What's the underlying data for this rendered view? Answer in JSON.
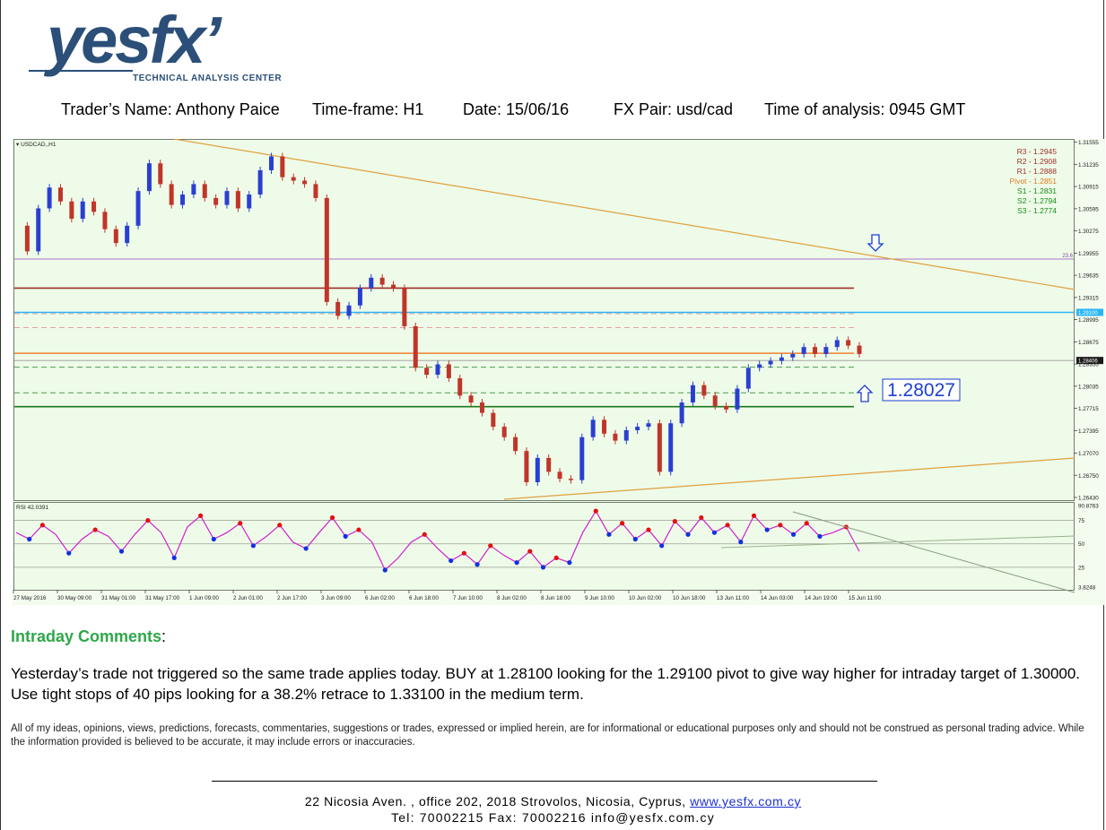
{
  "logo": {
    "wordmark": "yesfx’",
    "tagline": "TECHNICAL ANALYSIS CENTER"
  },
  "header": {
    "trader": "Trader’s Name: Anthony Paice",
    "timeframe": "Time-frame:  H1",
    "date": "Date:  15/06/16",
    "pair": "FX Pair: usd/cad",
    "time": "Time of analysis: 0945 GMT"
  },
  "chart_data": {
    "type": "line",
    "symbol_label": "▾ USDCAD,,H1",
    "price_axis": {
      "range": [
        1.2643,
        1.3155
      ],
      "ticks": [
        "1.31555",
        "1.31235",
        "1.30915",
        "1.30595",
        "1.30275",
        "1.29955",
        "1.29635",
        "1.29315",
        "1.28995",
        "1.28675",
        "1.28355",
        "1.28035",
        "1.27715",
        "1.27395",
        "1.27070",
        "1.26750",
        "1.26430"
      ],
      "tick_values": [
        1.31555,
        1.31235,
        1.30915,
        1.30595,
        1.30275,
        1.29955,
        1.29635,
        1.29315,
        1.28995,
        1.28675,
        1.28355,
        1.28035,
        1.27715,
        1.27395,
        1.2707,
        1.2675,
        1.2643
      ]
    },
    "time_labels": [
      "27 May 2016",
      "30 May 09:00",
      "31 May 01:00",
      "31 May 17:00",
      "1 Jun 09:00",
      "2 Jun 01:00",
      "2 Jun 17:00",
      "3 Jun 09:00",
      "6 Jun 02:00",
      "6 Jun 18:00",
      "7 Jun 10:00",
      "8 Jun 02:00",
      "8 Jun 18:00",
      "9 Jun 10:00",
      "10 Jun 02:00",
      "10 Jun 18:00",
      "13 Jun 11:00",
      "14 Jun 03:00",
      "14 Jun 19:00",
      "15 Jun 11:00"
    ],
    "pivots": [
      {
        "label": "R3 - 1.2945",
        "value": 1.2945,
        "color": "#a0302a",
        "style": "solid"
      },
      {
        "label": "R2 - 1.2908",
        "value": 1.2908,
        "color": "#e8a0a0",
        "style": "dashed"
      },
      {
        "label": "R1 - 1.2888",
        "value": 1.2888,
        "color": "#e8a0a0",
        "style": "dashed"
      },
      {
        "label": "Pivot - 1.2851",
        "value": 1.2851,
        "color": "#f08030",
        "style": "solid"
      },
      {
        "label": "S1 - 1.2831",
        "value": 1.2831,
        "color": "#4a9a4a",
        "style": "dashed"
      },
      {
        "label": "S2 - 1.2794",
        "value": 1.2794,
        "color": "#4a9a4a",
        "style": "dashed"
      },
      {
        "label": "S3 - 1.2774",
        "value": 1.2774,
        "color": "#1a7a1a",
        "style": "solid"
      }
    ],
    "fib_level": {
      "label": "23.6",
      "value": 1.2987,
      "color": "#b070d0"
    },
    "blue_level": {
      "label": "1.29100",
      "value": 1.291,
      "color": "#29b6f6"
    },
    "current_price": {
      "label": "1.28406",
      "value": 1.28406
    },
    "annotation": "1.28027",
    "price_series": [
      1.3035,
      1.2998,
      1.306,
      1.309,
      1.307,
      1.3045,
      1.307,
      1.3055,
      1.303,
      1.301,
      1.3035,
      1.3085,
      1.3125,
      1.3095,
      1.3065,
      1.308,
      1.3095,
      1.3075,
      1.3065,
      1.3085,
      1.306,
      1.308,
      1.3115,
      1.3135,
      1.3105,
      1.31,
      1.3095,
      1.3075,
      1.2925,
      1.2905,
      1.292,
      1.2945,
      1.296,
      1.295,
      1.2945,
      1.289,
      1.283,
      1.282,
      1.2835,
      1.2815,
      1.279,
      1.278,
      1.2765,
      1.2745,
      1.273,
      1.271,
      1.2665,
      1.27,
      1.268,
      1.267,
      1.2668,
      1.273,
      1.2755,
      1.2735,
      1.2725,
      1.274,
      1.2745,
      1.275,
      1.268,
      1.275,
      1.278,
      1.2805,
      1.279,
      1.2775,
      1.277,
      1.28,
      1.283,
      1.2835,
      1.284,
      1.2845,
      1.285,
      1.286,
      1.285,
      1.286,
      1.287,
      1.2862,
      1.285
    ],
    "rsi": {
      "label": "RSI 42.0391",
      "range": [
        3.8248,
        90.8763
      ],
      "ticks": [
        "90.8763",
        "75",
        "50",
        "25",
        "3.8248"
      ],
      "tick_values": [
        90.8763,
        75,
        50,
        25,
        3.8248
      ],
      "values": [
        62,
        55,
        70,
        60,
        40,
        55,
        65,
        58,
        42,
        60,
        75,
        62,
        35,
        68,
        80,
        55,
        62,
        72,
        48,
        58,
        70,
        52,
        45,
        62,
        78,
        58,
        65,
        52,
        22,
        35,
        52,
        60,
        45,
        32,
        40,
        28,
        48,
        38,
        30,
        42,
        25,
        35,
        30,
        62,
        85,
        60,
        72,
        55,
        65,
        48,
        74,
        60,
        78,
        62,
        70,
        52,
        80,
        65,
        70,
        60,
        72,
        58,
        62,
        68,
        42
      ]
    }
  },
  "comments": {
    "title": "Intraday Comments",
    "suffix": ":",
    "body": "Yesterday’s trade not triggered so the same trade applies today.  BUY at 1.28100 looking for the 1.29100 pivot to give way higher for intraday target of 1.30000.  Use tight stops of 40 pips looking for a 38.2% retrace to 1.33100 in the medium term."
  },
  "disclaimer": "All of my ideas, opinions, views, predictions, forecasts, commentaries, suggestions or trades, expressed or implied herein, are for informational or educational purposes only and should not be construed as personal trading advice. While the information provided is believed to be accurate, it may include errors or inaccuracies.",
  "footer": {
    "address": "22 Nicosia Aven. ,  office 202,  2018 Strovolos,  Nicosia,  Cyprus,",
    "website": "www.yesfx.com.cy",
    "contact": "Tel:  70002215  Fax:  70002216  info@yesfx.com.cy"
  }
}
